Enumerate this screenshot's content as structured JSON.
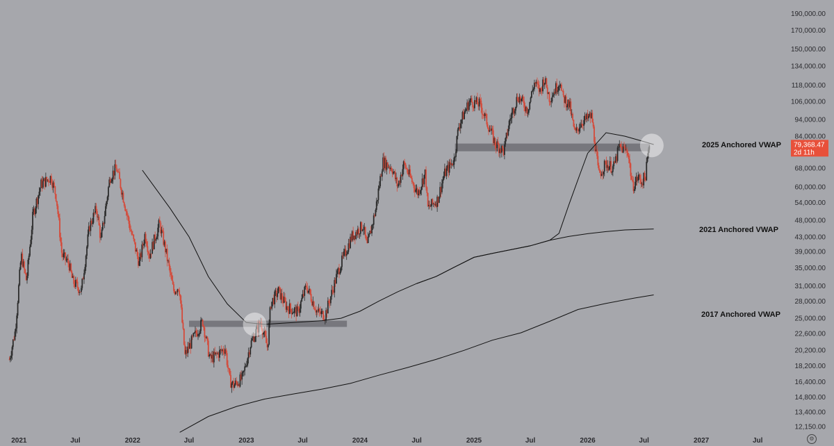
{
  "chart_data": {
    "type": "candlestick",
    "y_scale": "log",
    "ylim": [
      11500,
      195000
    ],
    "y_ticks": [
      "190,000.00",
      "170,000.00",
      "150,000.00",
      "134,000.00",
      "118,000.00",
      "106,000.00",
      "94,000.00",
      "84,000.00",
      "68,000.00",
      "60,000.00",
      "54,000.00",
      "48,000.00",
      "43,000.00",
      "39,000.00",
      "35,000.00",
      "31,000.00",
      "28,000.00",
      "25,000.00",
      "22,600.00",
      "20,200.00",
      "18,200.00",
      "16,400.00",
      "14,800.00",
      "13,400.00",
      "12,150.00"
    ],
    "x_ticks": [
      "2021",
      "Jul",
      "2022",
      "Jul",
      "2023",
      "Jul",
      "2024",
      "Jul",
      "2025",
      "Jul",
      "2026",
      "Jul",
      "2027",
      "Jul"
    ],
    "x_tick_dates": [
      "2021-01-01",
      "2021-07-01",
      "2022-01-01",
      "2022-07-01",
      "2023-01-01",
      "2023-07-01",
      "2024-01-01",
      "2024-07-01",
      "2025-01-01",
      "2025-07-01",
      "2026-01-01",
      "2026-07-01",
      "2027-01-01",
      "2027-07-01"
    ],
    "xlim": [
      "2020-11-01",
      "2027-09-01"
    ],
    "last_price": {
      "value": "79,368.47",
      "countdown": "2d 11h",
      "color": "#e8503a"
    },
    "price_series": {
      "dates": [
        "2020-12-01",
        "2020-12-20",
        "2021-01-08",
        "2021-01-25",
        "2021-02-15",
        "2021-03-13",
        "2021-04-14",
        "2021-05-01",
        "2021-05-19",
        "2021-06-10",
        "2021-06-22",
        "2021-07-20",
        "2021-08-15",
        "2021-09-07",
        "2021-09-21",
        "2021-10-20",
        "2021-11-10",
        "2021-11-30",
        "2021-12-20",
        "2022-01-22",
        "2022-02-10",
        "2022-02-24",
        "2022-03-28",
        "2022-04-15",
        "2022-05-12",
        "2022-05-30",
        "2022-06-18",
        "2022-07-10",
        "2022-08-14",
        "2022-09-06",
        "2022-09-25",
        "2022-10-25",
        "2022-11-09",
        "2022-11-21",
        "2022-12-20",
        "2023-01-14",
        "2023-02-16",
        "2023-03-10",
        "2023-03-20",
        "2023-04-14",
        "2023-05-10",
        "2023-06-15",
        "2023-07-13",
        "2023-08-17",
        "2023-09-11",
        "2023-10-24",
        "2023-12-05",
        "2024-01-11",
        "2024-01-23",
        "2024-02-20",
        "2024-03-14",
        "2024-04-13",
        "2024-05-01",
        "2024-05-21",
        "2024-06-24",
        "2024-07-05",
        "2024-07-29",
        "2024-08-05",
        "2024-09-06",
        "2024-09-27",
        "2024-10-29",
        "2024-11-13",
        "2024-12-05",
        "2024-12-17",
        "2025-01-20",
        "2025-02-25",
        "2025-03-10",
        "2025-04-07",
        "2025-04-25",
        "2025-05-22",
        "2025-06-22",
        "2025-07-14",
        "2025-08-02",
        "2025-08-14",
        "2025-09-01",
        "2025-10-06",
        "2025-10-10",
        "2025-11-04",
        "2025-11-21",
        "2025-12-10",
        "2026-01-14",
        "2026-02-05",
        "2026-03-01",
        "2026-03-25",
        "2026-04-12",
        "2026-05-10",
        "2026-05-25",
        "2026-06-12",
        "2026-06-22",
        "2026-07-05",
        "2026-07-18"
      ],
      "close": [
        19000,
        23000,
        38000,
        32000,
        50000,
        61000,
        64000,
        56000,
        38000,
        36000,
        32000,
        30000,
        46000,
        52000,
        42000,
        64000,
        68000,
        57000,
        47000,
        36000,
        44000,
        38000,
        47000,
        40000,
        30000,
        31000,
        19500,
        21500,
        24500,
        19000,
        19500,
        20500,
        16500,
        16000,
        16800,
        21000,
        24500,
        20500,
        27500,
        30000,
        27000,
        26000,
        31000,
        26000,
        25500,
        34500,
        43000,
        46500,
        40000,
        51500,
        71000,
        68000,
        60000,
        70000,
        60000,
        57500,
        66000,
        52000,
        55000,
        65000,
        72000,
        90000,
        100000,
        106000,
        104000,
        86000,
        80000,
        76000,
        93000,
        110000,
        100000,
        120000,
        113000,
        124000,
        108000,
        122000,
        110000,
        103000,
        85000,
        92000,
        96000,
        65000,
        70000,
        68000,
        78000,
        76000,
        60000,
        64000,
        62000,
        64000,
        79368
      ]
    },
    "vwap_2025_series": {
      "name": "2025 Anchored VWAP",
      "dates": [
        "2022-02-01",
        "2022-05-01",
        "2022-07-01",
        "2022-09-01",
        "2022-11-01",
        "2023-01-01",
        "2023-03-01",
        "2023-05-01",
        "2023-07-01",
        "2023-09-01",
        "2023-11-01",
        "2024-01-01",
        "2024-03-01",
        "2024-05-01",
        "2024-07-01",
        "2024-09-01",
        "2024-11-01",
        "2025-01-01",
        "2025-03-01",
        "2025-05-01",
        "2025-07-01",
        "2025-09-01",
        "2025-10-01",
        "2025-11-01",
        "2025-12-01",
        "2026-01-01",
        "2026-03-01",
        "2026-05-01",
        "2026-07-01",
        "2026-08-01"
      ],
      "values": [
        67000,
        52000,
        43000,
        33000,
        27500,
        24300,
        24000,
        24200,
        24400,
        24600,
        25000,
        26200,
        28000,
        29800,
        31500,
        33000,
        35200,
        37500,
        38500,
        39500,
        40500,
        42000,
        44000,
        53000,
        63000,
        75000,
        86000,
        84000,
        81000,
        79500
      ]
    },
    "vwap_2021_series": {
      "name": "2021 Anchored VWAP",
      "dates": [
        "2024-07-01",
        "2024-09-01",
        "2024-11-01",
        "2025-01-01",
        "2025-03-01",
        "2025-05-01",
        "2025-07-01",
        "2025-09-01",
        "2025-11-01",
        "2026-01-01",
        "2026-03-01",
        "2026-05-01",
        "2026-08-01"
      ],
      "values": [
        31500,
        33000,
        35200,
        37500,
        38500,
        39500,
        40500,
        42000,
        43100,
        43900,
        44500,
        45000,
        45300
      ]
    },
    "vwap_2017_series": {
      "name": "2017 Anchored VWAP",
      "dates": [
        "2022-06-01",
        "2022-09-01",
        "2022-12-01",
        "2023-03-01",
        "2023-06-01",
        "2023-09-01",
        "2023-12-01",
        "2024-03-01",
        "2024-06-01",
        "2024-09-01",
        "2024-12-01",
        "2025-03-01",
        "2025-06-01",
        "2025-09-01",
        "2025-12-01",
        "2026-03-01",
        "2026-06-01",
        "2026-08-01"
      ],
      "values": [
        11700,
        13000,
        13900,
        14600,
        15100,
        15600,
        16200,
        17100,
        18000,
        19000,
        20200,
        21600,
        22700,
        24500,
        26500,
        27600,
        28600,
        29200
      ]
    },
    "support_zones": [
      {
        "start": "2022-07-01",
        "end": "2023-11-20",
        "low": 23600,
        "high": 24600
      },
      {
        "start": "2024-11-01",
        "end": "2026-07-20",
        "low": 76000,
        "high": 80000
      }
    ],
    "highlight_circles": [
      {
        "date": "2023-01-28",
        "value": 24000
      },
      {
        "date": "2026-07-26",
        "value": 79000
      }
    ]
  },
  "labels": {
    "vwap_2025": "2025 Anchored VWAP",
    "vwap_2021": "2021 Anchored VWAP",
    "vwap_2017": "2017 Anchored VWAP"
  },
  "colors": {
    "background": "#a6a7ac",
    "candle_up": "#2b2b2b",
    "candle_down": "#d44a3a",
    "vwap_line": "#111111",
    "zone": "#6e6f74",
    "price_badge": "#e8503a"
  }
}
